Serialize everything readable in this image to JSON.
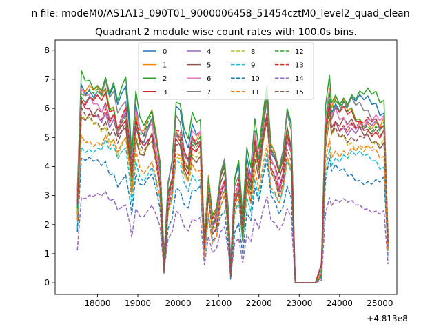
{
  "figure": {
    "suptitle": "n file: modeM0/AS1A13_090T01_9000006458_51454cztM0_level2_quad_clean",
    "title": "Quadrant 2 module wise count rates with 100.0s bins.",
    "x_offset_label": "+4.813e8"
  },
  "chart_data": {
    "type": "line",
    "title": "Quadrant 2 module wise count rates with 100.0s bins.",
    "xlabel": "",
    "ylabel": "",
    "x_offset": 481300000,
    "xlim": [
      16950,
      25420
    ],
    "ylim": [
      -0.4,
      8.35
    ],
    "xticks": [
      18000,
      19000,
      20000,
      21000,
      22000,
      23000,
      24000,
      25000
    ],
    "yticks": [
      0,
      1,
      2,
      3,
      4,
      5,
      6,
      7,
      8
    ],
    "grid": false,
    "legend": {
      "placement": "top-center",
      "columns": 4
    },
    "anchors": [
      {
        "x": 17500,
        "f": 0.4
      },
      {
        "x": 17600,
        "f": 0.97
      },
      {
        "x": 17700,
        "f": 0.94
      },
      {
        "x": 17800,
        "f": 0.96
      },
      {
        "x": 17900,
        "f": 0.93
      },
      {
        "x": 18000,
        "f": 0.95
      },
      {
        "x": 18100,
        "f": 0.92
      },
      {
        "x": 18200,
        "f": 0.97
      },
      {
        "x": 18300,
        "f": 0.88
      },
      {
        "x": 18400,
        "f": 0.91
      },
      {
        "x": 18500,
        "f": 0.81
      },
      {
        "x": 18600,
        "f": 0.86
      },
      {
        "x": 18700,
        "f": 0.9
      },
      {
        "x": 18800,
        "f": 0.7
      },
      {
        "x": 18850,
        "f": 0.55
      },
      {
        "x": 18950,
        "f": 0.86
      },
      {
        "x": 19050,
        "f": 0.76
      },
      {
        "x": 19150,
        "f": 0.74
      },
      {
        "x": 19250,
        "f": 0.79
      },
      {
        "x": 19350,
        "f": 0.83
      },
      {
        "x": 19450,
        "f": 0.72
      },
      {
        "x": 19550,
        "f": 0.58
      },
      {
        "x": 19650,
        "f": 0.1
      },
      {
        "x": 19750,
        "f": 0.46
      },
      {
        "x": 19850,
        "f": 0.55
      },
      {
        "x": 19950,
        "f": 0.8
      },
      {
        "x": 20050,
        "f": 0.78
      },
      {
        "x": 20150,
        "f": 0.66
      },
      {
        "x": 20250,
        "f": 0.62
      },
      {
        "x": 20350,
        "f": 0.75
      },
      {
        "x": 20450,
        "f": 0.72
      },
      {
        "x": 20550,
        "f": 0.75
      },
      {
        "x": 20650,
        "f": 0.2
      },
      {
        "x": 20750,
        "f": 0.5
      },
      {
        "x": 20850,
        "f": 0.3
      },
      {
        "x": 20950,
        "f": 0.34
      },
      {
        "x": 21050,
        "f": 0.52
      },
      {
        "x": 21150,
        "f": 0.58
      },
      {
        "x": 21250,
        "f": 0.3
      },
      {
        "x": 21300,
        "f": 0.06
      },
      {
        "x": 21400,
        "f": 0.45
      },
      {
        "x": 21500,
        "f": 0.52
      },
      {
        "x": 21600,
        "f": 0.26
      },
      {
        "x": 21700,
        "f": 0.58
      },
      {
        "x": 21800,
        "f": 0.5
      },
      {
        "x": 21900,
        "f": 0.74
      },
      {
        "x": 22000,
        "f": 0.62
      },
      {
        "x": 22100,
        "f": 0.8
      },
      {
        "x": 22200,
        "f": 0.94
      },
      {
        "x": 22300,
        "f": 0.66
      },
      {
        "x": 22400,
        "f": 0.62
      },
      {
        "x": 22500,
        "f": 0.54
      },
      {
        "x": 22600,
        "f": 0.62
      },
      {
        "x": 22700,
        "f": 0.8
      },
      {
        "x": 22800,
        "f": 0.72
      },
      {
        "x": 22900,
        "f": 0.0
      },
      {
        "x": 23000,
        "f": 0.0
      },
      {
        "x": 23200,
        "f": 0.0
      },
      {
        "x": 23400,
        "f": 0.0
      },
      {
        "x": 23550,
        "f": 0.06
      },
      {
        "x": 23650,
        "f": 0.8
      },
      {
        "x": 23750,
        "f": 0.96
      },
      {
        "x": 23800,
        "f": 0.85
      },
      {
        "x": 23900,
        "f": 0.9
      },
      {
        "x": 24000,
        "f": 0.86
      },
      {
        "x": 24100,
        "f": 0.89
      },
      {
        "x": 24200,
        "f": 0.85
      },
      {
        "x": 24300,
        "f": 0.88
      },
      {
        "x": 24400,
        "f": 0.84
      },
      {
        "x": 24500,
        "f": 0.86
      },
      {
        "x": 24600,
        "f": 0.83
      },
      {
        "x": 24700,
        "f": 0.85
      },
      {
        "x": 24800,
        "f": 0.82
      },
      {
        "x": 24900,
        "f": 0.84
      },
      {
        "x": 25000,
        "f": 0.8
      },
      {
        "x": 25100,
        "f": 0.83
      },
      {
        "x": 25200,
        "f": 0.22
      }
    ],
    "series": [
      {
        "name": "0",
        "color": "#1f77b4",
        "dash": false,
        "level": 7.2
      },
      {
        "name": "1",
        "color": "#ff7f0e",
        "dash": false,
        "level": 6.8
      },
      {
        "name": "2",
        "color": "#2ca02c",
        "dash": false,
        "level": 7.5
      },
      {
        "name": "3",
        "color": "#d62728",
        "dash": false,
        "level": 6.5
      },
      {
        "name": "4",
        "color": "#9467bd",
        "dash": false,
        "level": 6.3
      },
      {
        "name": "5",
        "color": "#8c564b",
        "dash": false,
        "level": 6.1
      },
      {
        "name": "6",
        "color": "#e377c2",
        "dash": false,
        "level": 6.6
      },
      {
        "name": "7",
        "color": "#7f7f7f",
        "dash": false,
        "level": 6.9
      },
      {
        "name": "8",
        "color": "#bcbd22",
        "dash": true,
        "level": 5.7
      },
      {
        "name": "9",
        "color": "#17becf",
        "dash": true,
        "level": 5.0
      },
      {
        "name": "10",
        "color": "#1f77b4",
        "dash": true,
        "level": 4.3
      },
      {
        "name": "11",
        "color": "#ff7f0e",
        "dash": true,
        "level": 5.3
      },
      {
        "name": "12",
        "color": "#2ca02c",
        "dash": true,
        "level": 6.7
      },
      {
        "name": "13",
        "color": "#d62728",
        "dash": true,
        "level": 6.4
      },
      {
        "name": "14",
        "color": "#9467bd",
        "dash": true,
        "level": 3.1
      },
      {
        "name": "15",
        "color": "#8c564b",
        "dash": true,
        "level": 6.0
      }
    ]
  }
}
